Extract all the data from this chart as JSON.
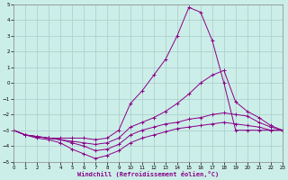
{
  "xlabel": "Windchill (Refroidissement éolien,°C)",
  "background_color": "#cceee8",
  "grid_color": "#aacccc",
  "line_color": "#880088",
  "xlim": [
    0,
    23
  ],
  "ylim": [
    -5,
    5
  ],
  "xticks": [
    0,
    1,
    2,
    3,
    4,
    5,
    6,
    7,
    8,
    9,
    10,
    11,
    12,
    13,
    14,
    15,
    16,
    17,
    18,
    19,
    20,
    21,
    22,
    23
  ],
  "yticks": [
    -5,
    -4,
    -3,
    -2,
    -1,
    0,
    1,
    2,
    3,
    4,
    5
  ],
  "lines": [
    {
      "x": [
        0,
        1,
        2,
        3,
        4,
        5,
        6,
        7,
        8,
        9,
        10,
        11,
        12,
        13,
        14,
        15,
        16,
        17,
        18,
        19,
        20,
        21,
        22,
        23
      ],
      "y": [
        -3.0,
        -3.3,
        -3.4,
        -3.5,
        -3.5,
        -3.5,
        -3.5,
        -3.6,
        -3.5,
        -3.0,
        -1.3,
        -0.5,
        0.5,
        1.5,
        3.0,
        4.8,
        4.5,
        2.7,
        0.0,
        -3.0,
        -3.0,
        -3.0,
        -3.0,
        -3.0
      ]
    },
    {
      "x": [
        0,
        1,
        2,
        3,
        4,
        5,
        6,
        7,
        8,
        9,
        10,
        11,
        12,
        13,
        14,
        15,
        16,
        17,
        18,
        19,
        20,
        21,
        22,
        23
      ],
      "y": [
        -3.0,
        -3.3,
        -3.4,
        -3.5,
        -3.6,
        -3.7,
        -3.8,
        -3.9,
        -3.8,
        -3.5,
        -2.8,
        -2.5,
        -2.2,
        -1.8,
        -1.3,
        -0.7,
        0.0,
        0.5,
        0.8,
        -1.2,
        -1.8,
        -2.2,
        -2.7,
        -3.0
      ]
    },
    {
      "x": [
        0,
        1,
        2,
        3,
        4,
        5,
        6,
        7,
        8,
        9,
        10,
        11,
        12,
        13,
        14,
        15,
        16,
        17,
        18,
        19,
        20,
        21,
        22,
        23
      ],
      "y": [
        -3.0,
        -3.3,
        -3.4,
        -3.5,
        -3.6,
        -3.8,
        -4.0,
        -4.3,
        -4.2,
        -3.9,
        -3.3,
        -3.0,
        -2.8,
        -2.6,
        -2.5,
        -2.3,
        -2.2,
        -2.0,
        -1.9,
        -2.0,
        -2.1,
        -2.5,
        -2.8,
        -3.0
      ]
    },
    {
      "x": [
        0,
        1,
        2,
        3,
        4,
        5,
        6,
        7,
        8,
        9,
        10,
        11,
        12,
        13,
        14,
        15,
        16,
        17,
        18,
        19,
        20,
        21,
        22,
        23
      ],
      "y": [
        -3.0,
        -3.3,
        -3.5,
        -3.6,
        -3.8,
        -4.2,
        -4.5,
        -4.8,
        -4.6,
        -4.3,
        -3.8,
        -3.5,
        -3.3,
        -3.1,
        -2.9,
        -2.8,
        -2.7,
        -2.6,
        -2.5,
        -2.6,
        -2.7,
        -2.8,
        -3.0,
        -3.0
      ]
    }
  ]
}
